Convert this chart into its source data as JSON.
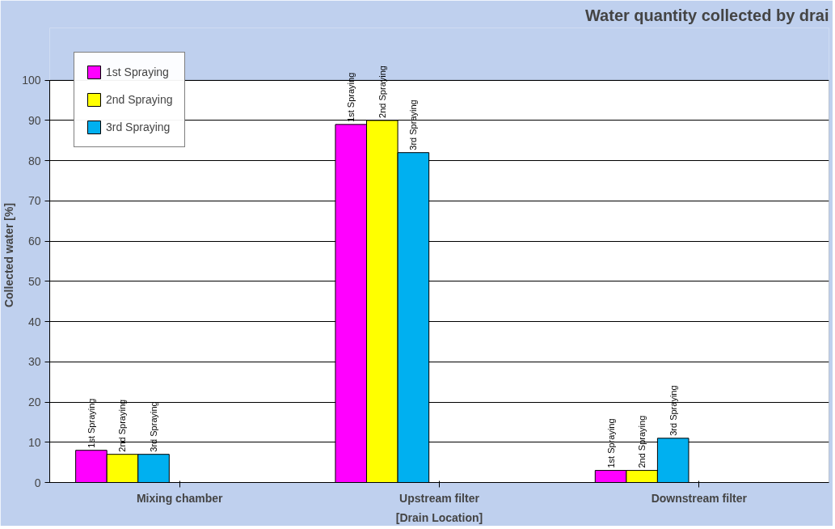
{
  "chart_data": {
    "type": "bar",
    "title": "Water quantity collected by drai",
    "xlabel": "[Drain Location]",
    "ylabel": "Collected water [%]",
    "categories": [
      "Mixing chamber",
      "Upstream filter",
      "Downstream filter"
    ],
    "series": [
      {
        "name": "1st Spraying",
        "color": "#ff00ff",
        "values": [
          8,
          89,
          3
        ]
      },
      {
        "name": "2nd Spraying",
        "color": "#ffff00",
        "values": [
          7,
          90,
          3
        ]
      },
      {
        "name": "3rd Spraying",
        "color": "#00b0f0",
        "values": [
          7,
          82,
          11
        ]
      }
    ],
    "annotations": [
      "1st Spraying",
      "1st Spraying",
      "1st Spraying",
      "2nd Spraying",
      "2nd Spraying",
      "2nd Spraying",
      "3rd Spraying",
      "3rd Spraying",
      "3rd Spraying"
    ],
    "ylim": [
      0,
      100
    ],
    "yticks": [
      0,
      10,
      20,
      30,
      40,
      50,
      60,
      70,
      80,
      90,
      100
    ],
    "grid": "y",
    "legend": "top left"
  }
}
